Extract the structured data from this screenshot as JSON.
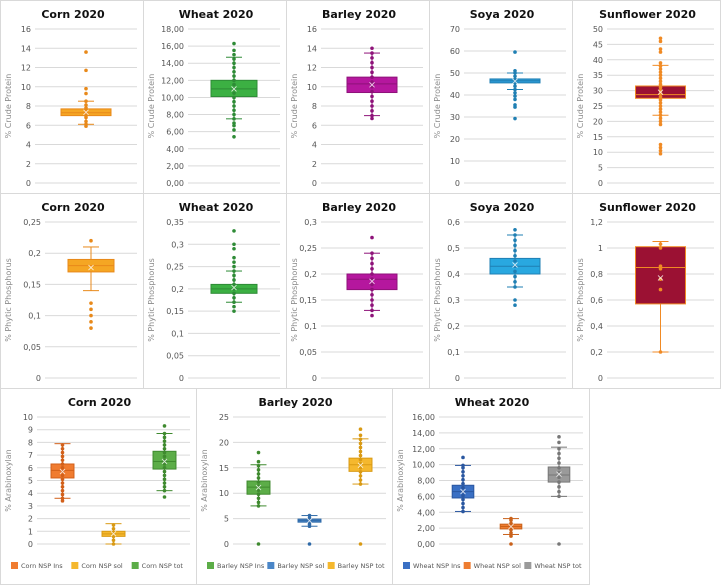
{
  "chart_data": [
    {
      "id": "corn-cp",
      "type": "box",
      "title": "Corn 2020",
      "ylabel": "% Crude Protein",
      "ylim": [
        0,
        16
      ],
      "yticks": [
        "0",
        "2",
        "4",
        "6",
        "8",
        "10",
        "12",
        "14",
        "16"
      ],
      "tick_step": 2,
      "grid": true,
      "series": [
        {
          "name": "Corn",
          "color": "#f5a623",
          "edge": "#e8891a",
          "q1": 7.0,
          "median": 7.3,
          "q3": 7.7,
          "mean": 7.35,
          "whisker_low": 6.1,
          "whisker_high": 8.5,
          "points": [
            5.9,
            6.1,
            6.4,
            6.8,
            7.0,
            7.2,
            7.4,
            7.6,
            7.8,
            8.1,
            8.5,
            9.3,
            9.8,
            11.7,
            13.6
          ]
        }
      ]
    },
    {
      "id": "wheat-cp",
      "type": "box",
      "title": "Wheat 2020",
      "ylabel": "% Crude Protein",
      "ylim": [
        0,
        18
      ],
      "yticks": [
        "0,00",
        "2,00",
        "4,00",
        "6,00",
        "8,00",
        "10,00",
        "12,00",
        "14,00",
        "16,00",
        "18,00"
      ],
      "tick_step": 2,
      "grid": true,
      "series": [
        {
          "name": "Wheat",
          "color": "#3cb043",
          "edge": "#2e8b36",
          "q1": 10.1,
          "median": 11.0,
          "q3": 12.0,
          "mean": 11.0,
          "whisker_low": 7.5,
          "whisker_high": 14.7,
          "points": [
            5.4,
            6.2,
            6.7,
            7.0,
            7.5,
            8.0,
            8.5,
            9.0,
            9.5,
            10.0,
            10.5,
            11.0,
            11.5,
            12.0,
            12.5,
            13.0,
            13.5,
            14.0,
            14.5,
            15.0,
            15.5,
            16.3
          ]
        }
      ]
    },
    {
      "id": "barley-cp",
      "type": "box",
      "title": "Barley 2020",
      "ylabel": "% Crude Protein",
      "ylim": [
        0,
        16
      ],
      "yticks": [
        "0",
        "2",
        "4",
        "6",
        "8",
        "10",
        "12",
        "14",
        "16"
      ],
      "tick_step": 2,
      "grid": true,
      "series": [
        {
          "name": "Barley",
          "color": "#b5179e",
          "edge": "#8e1279",
          "q1": 9.4,
          "median": 10.3,
          "q3": 11.0,
          "mean": 10.2,
          "whisker_low": 7.0,
          "whisker_high": 13.5,
          "points": [
            6.7,
            7.0,
            7.5,
            8.0,
            8.5,
            9.0,
            9.5,
            10.0,
            10.5,
            11.0,
            11.5,
            12.0,
            12.5,
            13.0,
            13.5,
            14.0
          ]
        }
      ]
    },
    {
      "id": "soya-cp",
      "type": "box",
      "title": "Soya 2020",
      "ylabel": "% Crude Protein",
      "ylim": [
        0,
        70
      ],
      "yticks": [
        "0",
        "10",
        "20",
        "30",
        "40",
        "50",
        "60",
        "70"
      ],
      "tick_step": 10,
      "grid": true,
      "series": [
        {
          "name": "Soya",
          "color": "#2d9bd6",
          "edge": "#1f7fb3",
          "q1": 45.5,
          "median": 46.5,
          "q3": 47.3,
          "mean": 46.3,
          "whisker_low": 42.5,
          "whisker_high": 50.0,
          "points": [
            29.3,
            34.5,
            35.5,
            38.0,
            39.5,
            41.0,
            42.5,
            44.0,
            45.5,
            47.0,
            48.5,
            50.0,
            51.0,
            59.5
          ]
        }
      ]
    },
    {
      "id": "sunflower-cp",
      "type": "box",
      "title": "Sunflower 2020",
      "ylabel": "% Crude Protein",
      "ylim": [
        0,
        50
      ],
      "yticks": [
        "0",
        "5",
        "10",
        "15",
        "20",
        "25",
        "30",
        "35",
        "40",
        "45",
        "50"
      ],
      "tick_step": 5,
      "grid": true,
      "series": [
        {
          "name": "Sunflower",
          "color": "#9b1133",
          "edge": "#f08a24",
          "q1": 27.5,
          "median": 28.7,
          "q3": 31.5,
          "mean": 29.5,
          "whisker_low": 22.0,
          "whisker_high": 38.2,
          "points": [
            9.5,
            10.5,
            11.5,
            12.5,
            19.0,
            20.0,
            21.0,
            22.0,
            23.0,
            24.0,
            25.0,
            26.0,
            27.0,
            28.0,
            29.0,
            30.0,
            31.0,
            32.0,
            33.0,
            34.0,
            35.0,
            36.0,
            37.0,
            38.0,
            39.0,
            42.5,
            43.5,
            46.0,
            47.0
          ]
        }
      ]
    },
    {
      "id": "corn-pp",
      "type": "box",
      "title": "Corn 2020",
      "ylabel": "% Phytic Phosphorus",
      "ylim": [
        0,
        0.25
      ],
      "yticks": [
        "0",
        "0,05",
        "0,1",
        "0,15",
        "0,2",
        "0,25"
      ],
      "tick_step": 0.05,
      "grid": true,
      "series": [
        {
          "name": "Corn",
          "color": "#f5a623",
          "edge": "#e8891a",
          "q1": 0.17,
          "median": 0.18,
          "q3": 0.19,
          "mean": 0.177,
          "whisker_low": 0.14,
          "whisker_high": 0.21,
          "points": [
            0.08,
            0.09,
            0.1,
            0.11,
            0.12,
            0.22
          ]
        }
      ]
    },
    {
      "id": "wheat-pp",
      "type": "box",
      "title": "Wheat 2020",
      "ylabel": "% Phytic Phosphorus",
      "ylim": [
        0,
        0.35
      ],
      "yticks": [
        "0",
        "0,05",
        "0,1",
        "0,15",
        "0,2",
        "0,25",
        "0,3",
        "0,35"
      ],
      "tick_step": 0.05,
      "grid": true,
      "series": [
        {
          "name": "Wheat",
          "color": "#3cb043",
          "edge": "#2e8b36",
          "q1": 0.19,
          "median": 0.2,
          "q3": 0.21,
          "mean": 0.203,
          "whisker_low": 0.17,
          "whisker_high": 0.24,
          "points": [
            0.15,
            0.16,
            0.17,
            0.18,
            0.19,
            0.2,
            0.21,
            0.22,
            0.23,
            0.24,
            0.25,
            0.26,
            0.27,
            0.29,
            0.3,
            0.33
          ]
        }
      ]
    },
    {
      "id": "barley-pp",
      "type": "box",
      "title": "Barley 2020",
      "ylabel": "% Phytic Phosphorus",
      "ylim": [
        0,
        0.3
      ],
      "yticks": [
        "0",
        "0,05",
        "0,1",
        "0,15",
        "0,2",
        "0,25",
        "0,3"
      ],
      "tick_step": 0.05,
      "grid": true,
      "series": [
        {
          "name": "Barley",
          "color": "#b5179e",
          "edge": "#8e1279",
          "q1": 0.17,
          "median": 0.19,
          "q3": 0.2,
          "mean": 0.186,
          "whisker_low": 0.13,
          "whisker_high": 0.24,
          "points": [
            0.12,
            0.13,
            0.14,
            0.15,
            0.16,
            0.17,
            0.18,
            0.19,
            0.2,
            0.21,
            0.22,
            0.23,
            0.24,
            0.27
          ]
        }
      ]
    },
    {
      "id": "soya-pp",
      "type": "box",
      "title": "Soya 2020",
      "ylabel": "% Phytic Phosphorus",
      "ylim": [
        0,
        0.6
      ],
      "yticks": [
        "0",
        "0,1",
        "0,2",
        "0,3",
        "0,4",
        "0,5",
        "0,6"
      ],
      "tick_step": 0.1,
      "grid": true,
      "series": [
        {
          "name": "Soya",
          "color": "#29a8e0",
          "edge": "#1f7fb3",
          "q1": 0.4,
          "median": 0.43,
          "q3": 0.46,
          "mean": 0.435,
          "whisker_low": 0.35,
          "whisker_high": 0.55,
          "points": [
            0.28,
            0.3,
            0.35,
            0.37,
            0.39,
            0.41,
            0.43,
            0.45,
            0.47,
            0.49,
            0.51,
            0.53,
            0.55,
            0.57
          ]
        }
      ]
    },
    {
      "id": "sunflower-pp",
      "type": "box",
      "title": "Sunflower 2020",
      "ylabel": "% Phytic Phosphorus",
      "ylim": [
        0,
        1.2
      ],
      "yticks": [
        "0",
        "0,2",
        "0,4",
        "0,6",
        "0,8",
        "1",
        "1,2"
      ],
      "tick_step": 0.2,
      "grid": true,
      "series": [
        {
          "name": "Sunflower",
          "color": "#9b1133",
          "edge": "#f08a24",
          "q1": 0.57,
          "median": 0.85,
          "q3": 1.01,
          "mean": 0.77,
          "whisker_low": 0.2,
          "whisker_high": 1.05,
          "points": [
            0.2,
            0.68,
            0.76,
            0.84,
            0.86,
            1.0,
            1.03
          ]
        }
      ]
    },
    {
      "id": "corn-ax",
      "type": "box",
      "title": "Corn 2020",
      "ylabel": "% Arabinoxylan",
      "ylim": [
        0,
        10
      ],
      "yticks": [
        "0",
        "1",
        "2",
        "3",
        "4",
        "5",
        "6",
        "7",
        "8",
        "9",
        "10"
      ],
      "tick_step": 1,
      "grid": true,
      "legend": "bottom",
      "series": [
        {
          "name": "Corn NSP Ins",
          "color": "#f07c30",
          "edge": "#d2601a",
          "q1": 5.2,
          "median": 5.8,
          "q3": 6.3,
          "mean": 5.7,
          "whisker_low": 3.6,
          "whisker_high": 7.9,
          "points": [
            3.4,
            3.6,
            3.9,
            4.2,
            4.5,
            4.8,
            5.1,
            5.4,
            5.7,
            6.0,
            6.3,
            6.6,
            6.9,
            7.2,
            7.5,
            7.8
          ]
        },
        {
          "name": "Corn NSP sol",
          "color": "#f5b82e",
          "edge": "#d99a14",
          "q1": 0.6,
          "median": 0.8,
          "q3": 1.0,
          "mean": 0.8,
          "whisker_low": 0.0,
          "whisker_high": 1.6,
          "points": [
            0.0,
            0.3,
            0.6,
            0.9,
            1.2,
            1.5
          ]
        },
        {
          "name": "Corn NSP tot",
          "color": "#5cad48",
          "edge": "#3f8a2f",
          "q1": 5.9,
          "median": 6.5,
          "q3": 7.3,
          "mean": 6.5,
          "whisker_low": 4.2,
          "whisker_high": 8.7,
          "points": [
            3.7,
            4.2,
            4.5,
            4.8,
            5.1,
            5.4,
            5.7,
            6.0,
            6.3,
            6.6,
            6.9,
            7.2,
            7.5,
            7.8,
            8.1,
            8.4,
            8.7,
            9.3
          ]
        }
      ]
    },
    {
      "id": "barley-ax",
      "type": "box",
      "title": "Barley 2020",
      "ylabel": "% Arabinoxylan",
      "ylim": [
        0,
        25
      ],
      "yticks": [
        "0",
        "5",
        "10",
        "15",
        "20",
        "25"
      ],
      "tick_step": 5,
      "grid": true,
      "legend": "bottom",
      "series": [
        {
          "name": "Barley NSP Ins",
          "color": "#5cad48",
          "edge": "#3f8a2f",
          "q1": 9.8,
          "median": 11.2,
          "q3": 12.4,
          "mean": 11.1,
          "whisker_low": 7.5,
          "whisker_high": 15.6,
          "points": [
            0.0,
            7.5,
            8.2,
            9.0,
            9.8,
            10.6,
            11.4,
            12.2,
            13.0,
            13.8,
            14.6,
            15.4,
            16.2,
            18.0
          ]
        },
        {
          "name": "Barley NSP sol",
          "color": "#4a86c8",
          "edge": "#2f6aa8",
          "q1": 4.3,
          "median": 4.6,
          "q3": 4.9,
          "mean": 4.6,
          "whisker_low": 3.5,
          "whisker_high": 5.6,
          "points": [
            0.0,
            3.5,
            3.9,
            4.3,
            4.7,
            5.1,
            5.6
          ]
        },
        {
          "name": "Barley NSP tot",
          "color": "#f5b82e",
          "edge": "#d99a14",
          "q1": 14.3,
          "median": 15.6,
          "q3": 16.9,
          "mean": 15.5,
          "whisker_low": 11.8,
          "whisker_high": 20.7,
          "points": [
            0.0,
            11.8,
            12.6,
            13.4,
            14.2,
            15.0,
            15.8,
            16.6,
            17.4,
            18.2,
            19.0,
            19.8,
            20.6,
            21.4,
            22.6
          ]
        }
      ]
    },
    {
      "id": "wheat-ax",
      "type": "box",
      "title": "Wheat 2020",
      "ylabel": "% Arabinoxylan",
      "ylim": [
        0,
        16
      ],
      "yticks": [
        "0,00",
        "2,00",
        "4,00",
        "6,00",
        "8,00",
        "10,00",
        "12,00",
        "14,00",
        "16,00"
      ],
      "tick_step": 2,
      "grid": true,
      "legend": "bottom",
      "series": [
        {
          "name": "Wheat NSP Ins",
          "color": "#3a70c4",
          "edge": "#2a57a0",
          "q1": 5.8,
          "median": 6.6,
          "q3": 7.4,
          "mean": 6.6,
          "whisker_low": 4.1,
          "whisker_high": 9.9,
          "points": [
            4.1,
            4.6,
            5.1,
            5.6,
            6.1,
            6.6,
            7.1,
            7.6,
            8.1,
            8.6,
            9.1,
            9.6,
            9.9,
            10.9
          ]
        },
        {
          "name": "Wheat NSP sol",
          "color": "#ee7d31",
          "edge": "#c9611a",
          "q1": 1.9,
          "median": 2.2,
          "q3": 2.5,
          "mean": 2.2,
          "whisker_low": 1.2,
          "whisker_high": 3.2,
          "points": [
            0.0,
            1.0,
            1.4,
            1.8,
            2.2,
            2.6,
            3.0,
            3.2
          ]
        },
        {
          "name": "Wheat NSP tot",
          "color": "#9a9a9a",
          "edge": "#777777",
          "q1": 7.8,
          "median": 8.7,
          "q3": 9.7,
          "mean": 8.8,
          "whisker_low": 6.0,
          "whisker_high": 12.2,
          "points": [
            0.0,
            6.0,
            6.6,
            7.2,
            7.8,
            8.4,
            9.0,
            9.6,
            10.2,
            10.8,
            11.4,
            12.0,
            12.8,
            13.5
          ]
        }
      ]
    }
  ]
}
